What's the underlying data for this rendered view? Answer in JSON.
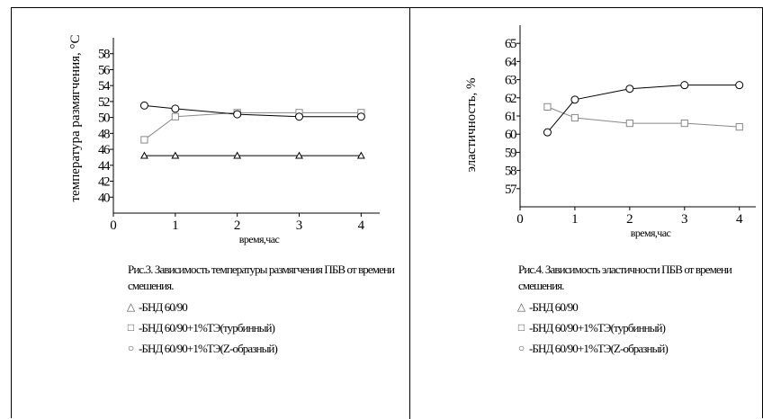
{
  "chart_data": [
    {
      "type": "line",
      "ylabel": "температура размягчения, °С",
      "xlabel": "время,час",
      "x": [
        0.5,
        1,
        2,
        3,
        4
      ],
      "xlim": [
        0,
        4.3
      ],
      "ylim": [
        38,
        60
      ],
      "xticks": [
        "0",
        "1",
        "2",
        "3",
        "4"
      ],
      "yticks": [
        "40",
        "42",
        "44",
        "46",
        "48",
        "50",
        "52",
        "54",
        "56",
        "58"
      ],
      "series": [
        {
          "name": "-БНД 60/90",
          "marker": "triangle",
          "values": [
            45.2,
            45.2,
            45.2,
            45.2,
            45.2
          ]
        },
        {
          "name": "-БНД 60/90+1%ТЭ(турбинный)",
          "marker": "square",
          "values": [
            47.2,
            50.1,
            50.6,
            50.6,
            50.6
          ]
        },
        {
          "name": "-БНД 60/90+1%ТЭ(Z-образный)",
          "marker": "circle",
          "values": [
            51.5,
            51.1,
            50.4,
            50.1,
            50.1
          ]
        }
      ],
      "caption": "Рис.3. Зависимость температуры размягчения ПБВ от времени смешения.",
      "grid": false,
      "legend_position": "below"
    },
    {
      "type": "line",
      "ylabel": "эластичность, %",
      "xlabel": "время,час",
      "x": [
        0.5,
        1,
        2,
        3,
        4
      ],
      "xlim": [
        0,
        4.3
      ],
      "ylim": [
        56,
        66
      ],
      "xticks": [
        "0",
        "1",
        "2",
        "3",
        "4"
      ],
      "yticks": [
        "57",
        "58",
        "59",
        "60",
        "61",
        "62",
        "63",
        "64",
        "65"
      ],
      "series": [
        {
          "name": "-БНД 60/90+1%ТЭ(турбинный)",
          "marker": "square",
          "values": [
            61.5,
            60.9,
            60.6,
            60.6,
            60.4
          ]
        },
        {
          "name": "-БНД 60/90+1%ТЭ(Z-образный)",
          "marker": "circle",
          "values": [
            60.1,
            61.9,
            62.5,
            62.7,
            62.7
          ]
        }
      ],
      "caption": "Рис.4. Зависимость эластичности ПБВ от времени смешения.",
      "grid": false,
      "legend_position": "below"
    }
  ],
  "legend_left": [
    {
      "marker": "△",
      "label": "-БНД 60/90"
    },
    {
      "marker": "□",
      "label": "-БНД 60/90+1%ТЭ(турбинный)"
    },
    {
      "marker": "○",
      "label": "-БНД 60/90+1%ТЭ(Z-образный)"
    }
  ],
  "legend_right": [
    {
      "marker": "△",
      "label": "-БНД 60/90"
    },
    {
      "marker": "□",
      "label": "-БНД 60/90+1%ТЭ(турбинный)"
    },
    {
      "marker": "○",
      "label": "-БНД 60/90+1%ТЭ(Z-образный)"
    }
  ],
  "colors": {
    "axis": "#000000",
    "dark_series": "#000000",
    "light_series": "#888888"
  }
}
